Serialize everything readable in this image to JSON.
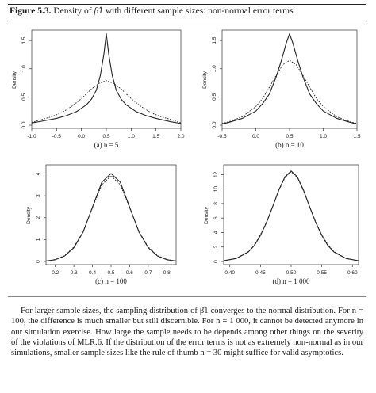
{
  "figure": {
    "label": "Figure 5.3.",
    "title_prefix": "Density of ",
    "title_symbol": "β̂1",
    "title_suffix": " with different sample sizes: non-normal error terms"
  },
  "chart_data": [
    {
      "type": "line",
      "subtitle": "(a) n = 5",
      "ylabel": "Density",
      "xlim": [
        -1.0,
        2.0
      ],
      "ylim": [
        0,
        1.6
      ],
      "xticks": [
        -1.0,
        -0.5,
        0.0,
        0.5,
        1.0,
        1.5,
        2.0
      ],
      "xtick_labels": [
        "-1.0",
        "-0.5",
        "0.0",
        "0.5",
        "1.0",
        "1.5",
        "2.0"
      ],
      "yticks": [
        0.0,
        0.5,
        1.0,
        1.5
      ],
      "ytick_labels": [
        "0.0",
        "0.5",
        "1.0",
        "1.5"
      ],
      "series": [
        {
          "style": "solid",
          "x": [
            -1.1,
            -0.8,
            -0.5,
            -0.3,
            -0.1,
            0.1,
            0.2,
            0.3,
            0.38,
            0.45,
            0.5,
            0.55,
            0.62,
            0.7,
            0.8,
            0.9,
            1.1,
            1.3,
            1.5,
            1.8,
            2.1
          ],
          "y": [
            0.04,
            0.07,
            0.12,
            0.17,
            0.24,
            0.36,
            0.46,
            0.62,
            0.88,
            1.25,
            1.62,
            1.25,
            0.88,
            0.62,
            0.46,
            0.36,
            0.24,
            0.17,
            0.12,
            0.06,
            0.03
          ]
        },
        {
          "style": "dotted",
          "x": [
            -1.1,
            -0.8,
            -0.6,
            -0.4,
            -0.2,
            0.0,
            0.2,
            0.35,
            0.5,
            0.65,
            0.8,
            1.0,
            1.2,
            1.4,
            1.6,
            1.8,
            2.1
          ],
          "y": [
            0.05,
            0.1,
            0.15,
            0.22,
            0.33,
            0.47,
            0.64,
            0.74,
            0.79,
            0.74,
            0.64,
            0.47,
            0.33,
            0.22,
            0.15,
            0.1,
            0.04
          ]
        }
      ]
    },
    {
      "type": "line",
      "subtitle": "(b) n = 10",
      "ylabel": "Density",
      "xlim": [
        -0.5,
        1.5
      ],
      "ylim": [
        0,
        1.6
      ],
      "xticks": [
        -0.5,
        0.0,
        0.5,
        1.0,
        1.5
      ],
      "xtick_labels": [
        "-0.5",
        "0.0",
        "0.5",
        "1.0",
        "1.5"
      ],
      "yticks": [
        0.0,
        0.5,
        1.0,
        1.5
      ],
      "ytick_labels": [
        "0.0",
        "0.5",
        "1.0",
        "1.5"
      ],
      "series": [
        {
          "style": "solid",
          "x": [
            -0.55,
            -0.4,
            -0.2,
            0.0,
            0.1,
            0.2,
            0.3,
            0.38,
            0.45,
            0.5,
            0.55,
            0.62,
            0.7,
            0.8,
            0.9,
            1.0,
            1.2,
            1.4,
            1.55
          ],
          "y": [
            0.02,
            0.05,
            0.12,
            0.25,
            0.38,
            0.55,
            0.85,
            1.15,
            1.45,
            1.62,
            1.45,
            1.15,
            0.85,
            0.55,
            0.38,
            0.25,
            0.12,
            0.05,
            0.02
          ]
        },
        {
          "style": "dotted",
          "x": [
            -0.55,
            -0.4,
            -0.2,
            0.0,
            0.1,
            0.2,
            0.3,
            0.4,
            0.5,
            0.6,
            0.7,
            0.8,
            0.9,
            1.0,
            1.2,
            1.4,
            1.55
          ],
          "y": [
            0.03,
            0.06,
            0.15,
            0.33,
            0.47,
            0.67,
            0.88,
            1.07,
            1.15,
            1.07,
            0.88,
            0.67,
            0.47,
            0.33,
            0.15,
            0.06,
            0.03
          ]
        }
      ]
    },
    {
      "type": "line",
      "subtitle": "(c) n = 100",
      "ylabel": "Density",
      "xlim": [
        0.15,
        0.85
      ],
      "ylim": [
        0,
        4.2
      ],
      "xticks": [
        0.2,
        0.3,
        0.4,
        0.5,
        0.6,
        0.7,
        0.8
      ],
      "xtick_labels": [
        "0.2",
        "0.3",
        "0.4",
        "0.5",
        "0.6",
        "0.7",
        "0.8"
      ],
      "yticks": [
        0,
        1,
        2,
        3,
        4
      ],
      "ytick_labels": [
        "0",
        "1",
        "2",
        "3",
        "4"
      ],
      "series": [
        {
          "style": "solid",
          "x": [
            0.15,
            0.2,
            0.25,
            0.3,
            0.35,
            0.4,
            0.45,
            0.5,
            0.55,
            0.6,
            0.65,
            0.7,
            0.75,
            0.8,
            0.85
          ],
          "y": [
            0.02,
            0.08,
            0.25,
            0.63,
            1.35,
            2.48,
            3.62,
            4.02,
            3.62,
            2.48,
            1.35,
            0.63,
            0.25,
            0.08,
            0.02
          ]
        },
        {
          "style": "dotted",
          "x": [
            0.15,
            0.2,
            0.25,
            0.3,
            0.35,
            0.4,
            0.45,
            0.5,
            0.55,
            0.6,
            0.65,
            0.7,
            0.75,
            0.8,
            0.85
          ],
          "y": [
            0.02,
            0.09,
            0.27,
            0.66,
            1.38,
            2.45,
            3.5,
            3.92,
            3.5,
            2.45,
            1.38,
            0.66,
            0.27,
            0.09,
            0.02
          ]
        }
      ]
    },
    {
      "type": "line",
      "subtitle": "(d) n = 1 000",
      "ylabel": "Density",
      "xlim": [
        0.39,
        0.61
      ],
      "ylim": [
        0,
        12.7
      ],
      "xticks": [
        0.4,
        0.45,
        0.5,
        0.55,
        0.6
      ],
      "xtick_labels": [
        "0.40",
        "0.45",
        "0.50",
        "0.55",
        "0.60"
      ],
      "yticks": [
        0,
        2,
        4,
        6,
        8,
        10,
        12
      ],
      "ytick_labels": [
        "0",
        "2",
        "4",
        "6",
        "8",
        "10",
        "12"
      ],
      "series": [
        {
          "style": "solid",
          "x": [
            0.39,
            0.41,
            0.43,
            0.44,
            0.45,
            0.46,
            0.47,
            0.48,
            0.49,
            0.5,
            0.51,
            0.52,
            0.53,
            0.54,
            0.55,
            0.56,
            0.57,
            0.59,
            0.61
          ],
          "y": [
            0.1,
            0.4,
            1.3,
            2.2,
            3.6,
            5.4,
            7.6,
            9.9,
            11.7,
            12.5,
            11.7,
            9.9,
            7.6,
            5.4,
            3.6,
            2.2,
            1.3,
            0.4,
            0.1
          ]
        },
        {
          "style": "dotted",
          "x": [
            0.39,
            0.41,
            0.43,
            0.44,
            0.45,
            0.46,
            0.47,
            0.48,
            0.49,
            0.5,
            0.51,
            0.52,
            0.53,
            0.54,
            0.55,
            0.56,
            0.57,
            0.59,
            0.61
          ],
          "y": [
            0.1,
            0.42,
            1.35,
            2.3,
            3.7,
            5.5,
            7.6,
            9.8,
            11.6,
            12.4,
            11.6,
            9.8,
            7.6,
            5.5,
            3.7,
            2.3,
            1.35,
            0.42,
            0.1
          ]
        }
      ]
    }
  ],
  "caption": "For larger sample sizes, the sampling distribution of β̂1 converges to the normal distribution. For n = 100, the difference is much smaller but still discernible. For n = 1 000, it cannot be detected anymore in our simulation exercise. How large the sample needs to be depends among other things on the severity of the violations of MLR.6. If the distribution of the error terms is not as extremely non-normal as in our simulations, smaller sample sizes like the rule of thumb n = 30 might suffice for valid asymptotics."
}
